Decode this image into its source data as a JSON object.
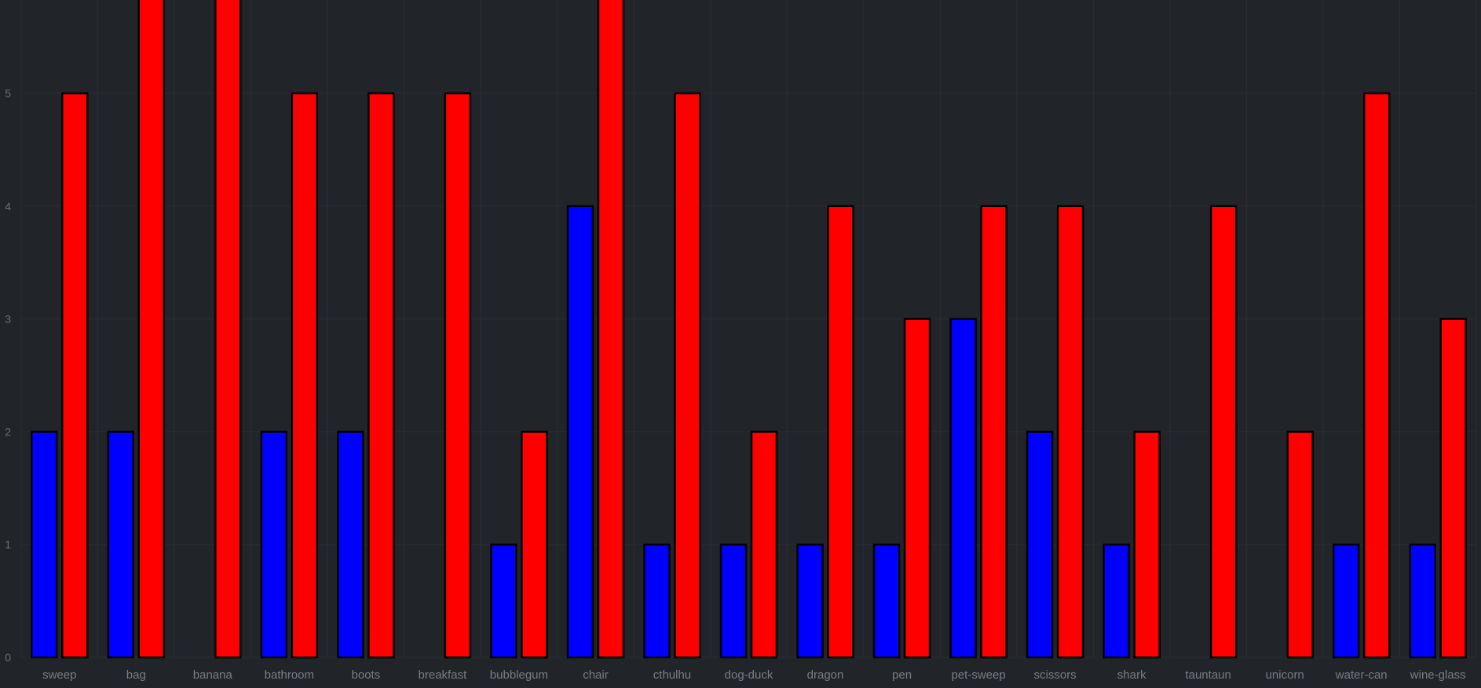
{
  "chart_data": {
    "type": "bar",
    "title": "",
    "xlabel": "",
    "ylabel": "",
    "categories": [
      "sweep",
      "bag",
      "banana",
      "bathroom",
      "boots",
      "breakfast",
      "bubblegum",
      "chair",
      "cthulhu",
      "dog-duck",
      "dragon",
      "pen",
      "pet-sweep",
      "scissors",
      "shark",
      "tauntaun",
      "unicorn",
      "water-can",
      "wine-glass"
    ],
    "series": [
      {
        "color": "#0000ff",
        "values": [
          2,
          2,
          0,
          2,
          2,
          0,
          1,
          4,
          1,
          1,
          1,
          1,
          3,
          2,
          1,
          0,
          0,
          1,
          1
        ]
      },
      {
        "color": "#ff0000",
        "values": [
          5,
          6,
          6,
          5,
          5,
          5,
          2,
          6,
          5,
          2,
          4,
          3,
          4,
          4,
          2,
          4,
          2,
          5,
          3
        ]
      }
    ],
    "yticks": [
      "0",
      "1",
      "2",
      "3",
      "4",
      "5"
    ],
    "ylim": [
      0,
      5.8
    ],
    "grid": true,
    "legend": "none"
  }
}
